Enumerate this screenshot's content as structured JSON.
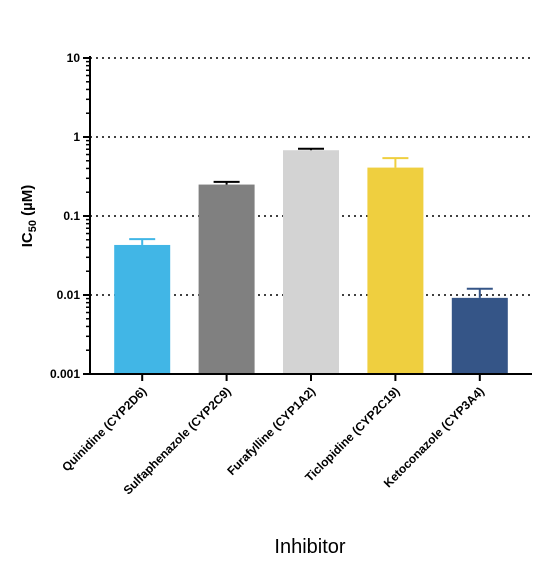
{
  "chart_data": {
    "type": "bar",
    "yscale": "log",
    "ylim": [
      0.001,
      10
    ],
    "yticks": [
      0.001,
      0.01,
      0.1,
      1,
      10
    ],
    "ytick_labels": [
      "0.001",
      "0.01",
      "0.1",
      "1",
      "10"
    ],
    "grid": "horizontal dotted at major ticks",
    "xlabel": "Inhibitor",
    "ylabel_main": "IC",
    "ylabel_sub": "50",
    "ylabel_unit": " (µM)",
    "categories": [
      "Quinidine (CYP2D6)",
      "Sulfaphenazole (CYP2C9)",
      "Furafylline (CYP1A2)",
      "Ticlopidine (CYP2C19)",
      "Ketoconazole (CYP3A4)"
    ],
    "values": [
      0.043,
      0.25,
      0.68,
      0.41,
      0.0092
    ],
    "error_upper": [
      0.051,
      0.27,
      0.71,
      0.54,
      0.012
    ],
    "colors": [
      "#41b6e6",
      "#808080",
      "#d3d3d3",
      "#efcf3f",
      "#355587"
    ],
    "error_colors": [
      "#41b6e6",
      "#000000",
      "#000000",
      "#efcf3f",
      "#355587"
    ]
  }
}
